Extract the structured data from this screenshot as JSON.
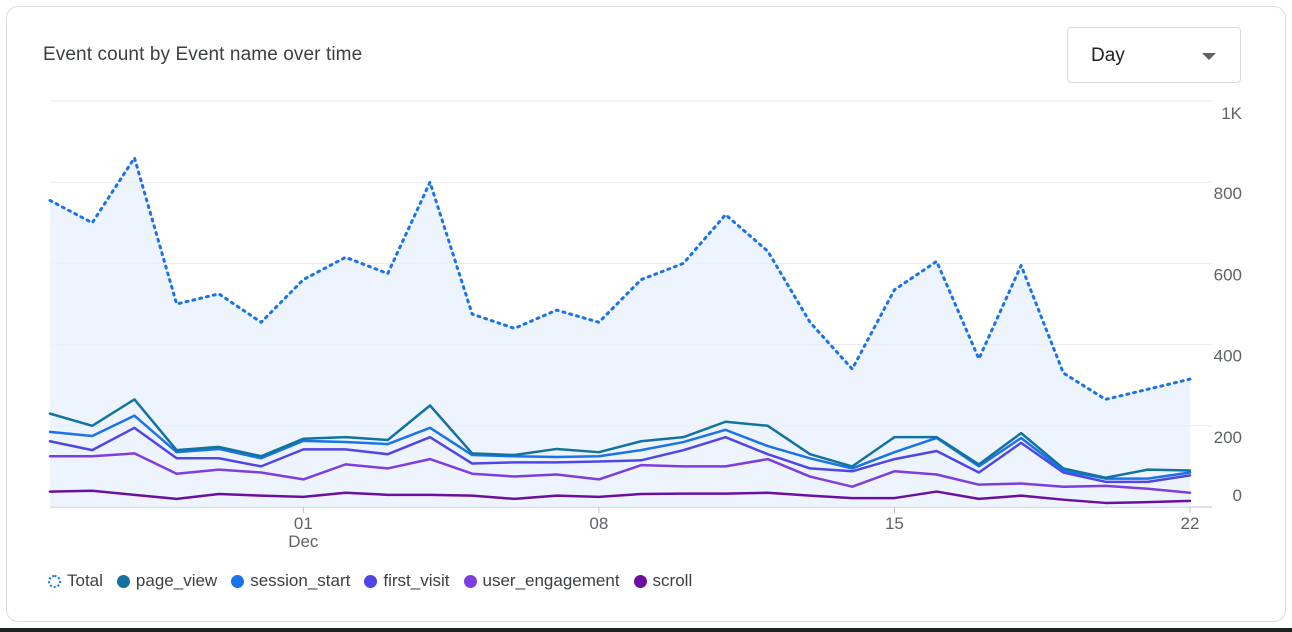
{
  "chart_data": {
    "type": "line",
    "title": "Event count by Event name over time",
    "ylim": [
      0,
      1000
    ],
    "yticks": [
      {
        "value": 1000,
        "label": "1K"
      },
      {
        "value": 800,
        "label": "800"
      },
      {
        "value": 600,
        "label": "600"
      },
      {
        "value": 400,
        "label": "400"
      },
      {
        "value": 200,
        "label": "200"
      },
      {
        "value": 0,
        "label": "0"
      }
    ],
    "x_range": [
      0,
      27
    ],
    "xticks": [
      {
        "index": 6,
        "label": "01",
        "sublabel": "Dec"
      },
      {
        "index": 13,
        "label": "08",
        "sublabel": ""
      },
      {
        "index": 20,
        "label": "15",
        "sublabel": ""
      },
      {
        "index": 27,
        "label": "22",
        "sublabel": ""
      }
    ],
    "series": [
      {
        "name": "Total",
        "style": "dotted",
        "color": "#1a73e8",
        "values": [
          755,
          700,
          860,
          500,
          525,
          455,
          560,
          615,
          575,
          800,
          475,
          440,
          485,
          455,
          560,
          600,
          720,
          630,
          455,
          340,
          535,
          605,
          365,
          595,
          330,
          265,
          290,
          315
        ]
      },
      {
        "name": "page_view",
        "style": "solid",
        "color": "#12739e",
        "values": [
          230,
          200,
          265,
          140,
          148,
          125,
          168,
          172,
          165,
          250,
          132,
          128,
          143,
          135,
          162,
          172,
          210,
          200,
          130,
          100,
          172,
          172,
          105,
          182,
          95,
          72,
          92,
          90
        ]
      },
      {
        "name": "session_start",
        "style": "solid",
        "color": "#1a73e8",
        "values": [
          185,
          175,
          225,
          135,
          143,
          120,
          163,
          160,
          155,
          195,
          128,
          125,
          123,
          125,
          140,
          160,
          190,
          150,
          120,
          95,
          135,
          170,
          100,
          170,
          90,
          70,
          70,
          85
        ]
      },
      {
        "name": "first_visit",
        "style": "solid",
        "color": "#4f46e5",
        "values": [
          162,
          140,
          195,
          120,
          120,
          100,
          142,
          142,
          130,
          172,
          107,
          110,
          110,
          112,
          115,
          140,
          172,
          130,
          95,
          88,
          118,
          138,
          85,
          158,
          85,
          62,
          62,
          78
        ]
      },
      {
        "name": "user_engagement",
        "style": "solid",
        "color": "#7e3ddf",
        "values": [
          125,
          125,
          132,
          82,
          92,
          85,
          68,
          105,
          95,
          118,
          82,
          75,
          80,
          68,
          103,
          100,
          100,
          118,
          75,
          50,
          88,
          80,
          55,
          58,
          50,
          52,
          45,
          35
        ]
      },
      {
        "name": "scroll",
        "style": "solid",
        "color": "#6b0f9e",
        "values": [
          38,
          40,
          30,
          20,
          32,
          28,
          25,
          35,
          30,
          30,
          28,
          20,
          28,
          25,
          32,
          33,
          33,
          35,
          28,
          22,
          22,
          38,
          20,
          28,
          18,
          10,
          12,
          15
        ]
      }
    ]
  },
  "controls": {
    "granularity": "Day"
  }
}
